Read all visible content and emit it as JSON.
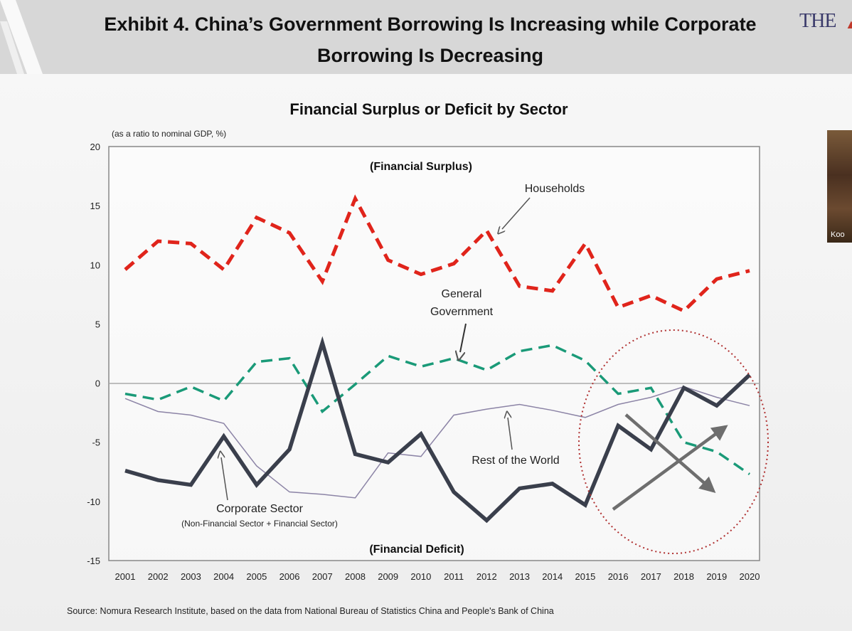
{
  "header": {
    "line1": "Exhibit 4. China’s Government Borrowing Is Increasing while Corporate",
    "line2": "Borrowing Is Decreasing",
    "logo": "THE"
  },
  "thumbnail": {
    "label": "Koo"
  },
  "chart_data": {
    "type": "line",
    "title": "Financial Surplus or Deficit by Sector",
    "ylabel": "(as a ratio to nominal GDP, %)",
    "xlabel": "",
    "ylim": [
      -15,
      20
    ],
    "yticks": [
      20,
      15,
      10,
      5,
      0,
      -5,
      -10,
      -15
    ],
    "categories": [
      "2001",
      "2002",
      "2003",
      "2004",
      "2005",
      "2006",
      "2007",
      "2008",
      "2009",
      "2010",
      "2011",
      "2012",
      "2013",
      "2014",
      "2015",
      "2016",
      "2017",
      "2018",
      "2019",
      "2020"
    ],
    "legend": "none",
    "grid": false,
    "series": [
      {
        "name": "Households",
        "color": "#e0241b",
        "style": "dashed-thick",
        "values": [
          9.6,
          12.0,
          11.8,
          9.6,
          14.0,
          12.7,
          8.6,
          15.6,
          10.4,
          9.2,
          10.1,
          12.9,
          8.2,
          7.8,
          11.8,
          6.4,
          7.4,
          6.1,
          8.8,
          9.5
        ]
      },
      {
        "name": "General Government",
        "color": "#1a9a78",
        "style": "dashed",
        "values": [
          -0.9,
          -1.4,
          -0.3,
          -1.5,
          1.8,
          2.1,
          -2.4,
          -0.1,
          2.3,
          1.4,
          2.1,
          1.1,
          2.7,
          3.2,
          1.9,
          -0.9,
          -0.4,
          -5.0,
          -5.8,
          -7.7
        ]
      },
      {
        "name": "Rest of the World",
        "color": "#8c84a6",
        "style": "solid-thin",
        "values": [
          -1.3,
          -2.4,
          -2.7,
          -3.4,
          -7.0,
          -9.2,
          -9.4,
          -9.7,
          -5.9,
          -6.2,
          -2.7,
          -2.2,
          -1.8,
          -2.3,
          -2.9,
          -1.8,
          -1.2,
          -0.3,
          -1.2,
          -1.9
        ]
      },
      {
        "name": "Corporate Sector",
        "color": "#3a3f4c",
        "style": "solid-thick",
        "values": [
          -7.4,
          -8.2,
          -8.6,
          -4.5,
          -8.6,
          -5.6,
          3.4,
          -6.0,
          -6.7,
          -4.3,
          -9.2,
          -11.6,
          -8.9,
          -8.5,
          -10.3,
          -3.6,
          -5.6,
          -0.4,
          -1.9,
          0.7
        ]
      }
    ],
    "annotations": {
      "surplus": "(Financial Surplus)",
      "deficit": "(Financial Deficit)",
      "households": "Households",
      "gov_line1": "General",
      "gov_line2": "Government",
      "row": "Rest of the World",
      "corp_line1": "Corporate Sector",
      "corp_line2": "(Non-Financial Sector + Financial Sector)"
    },
    "source": "Source: Nomura Research Institute, based on the data from National Bureau of Statistics China and People's Bank of China"
  }
}
